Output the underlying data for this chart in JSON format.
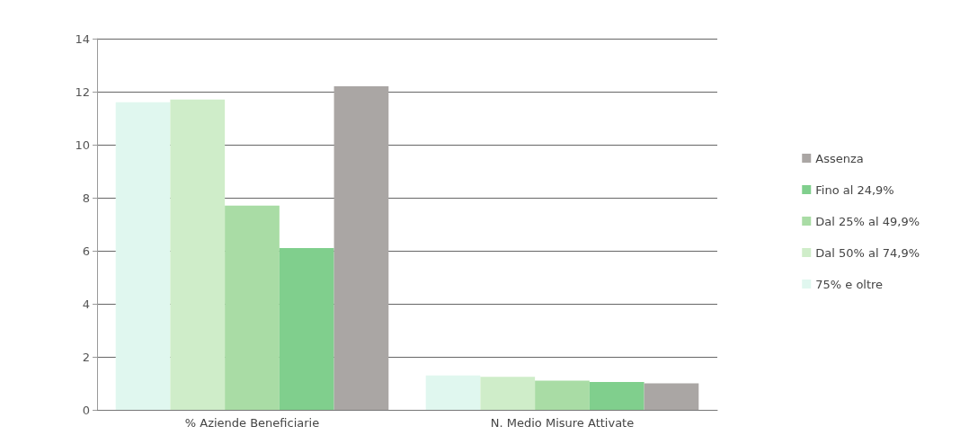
{
  "chart_data": {
    "type": "bar",
    "categories": [
      "% Aziende Beneficiarie",
      "N. Medio Misure Attivate"
    ],
    "series": [
      {
        "name": "75% e oltre",
        "color": "#e0f7ef",
        "values": [
          11.6,
          1.3
        ]
      },
      {
        "name": "Dal 50% al 74,9%",
        "color": "#cfedc9",
        "values": [
          11.7,
          1.25
        ]
      },
      {
        "name": "Dal 25% al 49,9%",
        "color": "#a9dca5",
        "values": [
          7.7,
          1.1
        ]
      },
      {
        "name": "Fino al 24,9%",
        "color": "#80cf8d",
        "values": [
          6.1,
          1.05
        ]
      },
      {
        "name": "Assenza",
        "color": "#aaa6a4",
        "values": [
          12.2,
          1.0
        ]
      }
    ],
    "ylim": [
      0,
      14
    ],
    "yticks": [
      0,
      2,
      4,
      6,
      8,
      10,
      12,
      14
    ],
    "grid": "y",
    "legend": "right"
  }
}
